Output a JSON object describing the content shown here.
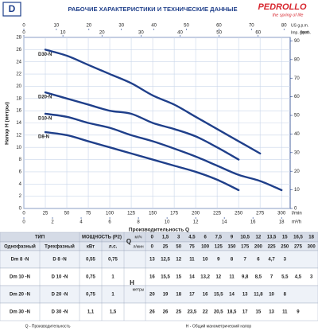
{
  "header": {
    "badge": "D",
    "title": "РАБОЧИЕ ХАРАКТЕРИСТИКИ И ТЕХНИЧЕСКИЕ ДАННЫЕ",
    "brand": "PEDROLLO",
    "tagline": "the spring of life"
  },
  "chart_data": {
    "type": "line",
    "y_label": "Напор H (метры)",
    "x_label": "Производительность Q",
    "x_unit": "l/min",
    "m3h_unit": "m³/h",
    "usgpm_unit": "US g.p.m.",
    "impgpm_unit": "Imp. g.p.m.",
    "y2_unit": "feet",
    "x": [
      25,
      50,
      75,
      100,
      125,
      150,
      175,
      200,
      225,
      250,
      275,
      300
    ],
    "xlim": [
      0,
      310
    ],
    "xticks": [
      0,
      25,
      50,
      75,
      100,
      125,
      150,
      175,
      200,
      225,
      250,
      275,
      300
    ],
    "m3h_lim": [
      0,
      18.6
    ],
    "m3h_ticks": [
      0,
      2,
      4,
      6,
      8,
      10,
      12,
      14,
      16,
      18
    ],
    "usgpm_lim": [
      0,
      81.9
    ],
    "usgpm_ticks": [
      0,
      10,
      20,
      30,
      40,
      50,
      60,
      70,
      80
    ],
    "impgpm_lim": [
      0,
      68.2
    ],
    "impgpm_ticks": [
      0,
      10,
      20,
      30,
      40,
      50,
      60
    ],
    "ylim": [
      0,
      28
    ],
    "yticks": [
      0,
      2,
      4,
      6,
      8,
      10,
      12,
      14,
      16,
      18,
      20,
      22,
      24,
      26,
      28
    ],
    "y2lim": [
      0,
      91.9
    ],
    "y2ticks": [
      0,
      10,
      20,
      30,
      40,
      50,
      60,
      70,
      80,
      90
    ],
    "grid": true,
    "series": [
      {
        "name": "D30-N",
        "color": "#1f3f8a",
        "values": [
          26,
          25,
          23.5,
          22,
          20.5,
          18.5,
          17,
          15,
          13,
          11,
          9,
          null
        ]
      },
      {
        "name": "D20-N",
        "color": "#1f3f8a",
        "values": [
          19,
          18,
          17,
          16,
          15.5,
          14,
          13,
          11.8,
          10,
          8,
          null,
          null
        ]
      },
      {
        "name": "D10-N",
        "color": "#1f3f8a",
        "values": [
          15.5,
          15,
          14,
          13.2,
          12,
          11,
          9.8,
          8.5,
          7,
          5.5,
          4.5,
          3
        ]
      },
      {
        "name": "D8-N",
        "color": "#1f3f8a",
        "values": [
          12.5,
          12,
          11,
          10,
          9,
          8,
          7,
          6,
          4.7,
          3,
          null,
          null
        ]
      }
    ]
  },
  "table": {
    "head": {
      "type": "ТИП",
      "power": "МОЩНОСТЬ (P2)",
      "q": "Q",
      "single": "Однофазный",
      "three": "Трехфазный",
      "kw": "кВт",
      "hp": "л.с.",
      "m3h": "м³/ч",
      "lmin": "л/мин",
      "h": "H",
      "meters": "метры",
      "flow_m3h": [
        "0",
        "1,5",
        "3",
        "4,5",
        "6",
        "7,5",
        "9",
        "10,5",
        "12",
        "13,5",
        "15",
        "16,5",
        "18"
      ],
      "flow_lmin": [
        "0",
        "25",
        "50",
        "75",
        "100",
        "125",
        "150",
        "175",
        "200",
        "225",
        "250",
        "275",
        "300"
      ]
    },
    "rows": [
      {
        "single": "Dm 8 -N",
        "three": "D 8 -N",
        "kw": "0,55",
        "hp": "0,75",
        "heads": [
          "13",
          "12,5",
          "12",
          "11",
          "10",
          "9",
          "8",
          "7",
          "6",
          "4,7",
          "3"
        ]
      },
      {
        "single": "Dm 10 -N",
        "three": "D 10 -N",
        "kw": "0,75",
        "hp": "1",
        "heads": [
          "16",
          "15,5",
          "15",
          "14",
          "13,2",
          "12",
          "11",
          "9,8",
          "8,5",
          "7",
          "5,5",
          "4,5",
          "3"
        ]
      },
      {
        "single": "Dm 20 -N",
        "three": "D 20 -N",
        "kw": "0,75",
        "hp": "1",
        "heads": [
          "20",
          "19",
          "18",
          "17",
          "16",
          "15,5",
          "14",
          "13",
          "11,8",
          "10",
          "8"
        ]
      },
      {
        "single": "Dm 30 -N",
        "three": "D 30 -N",
        "kw": "1,1",
        "hp": "1,5",
        "heads": [
          "26",
          "26",
          "25",
          "23,5",
          "22",
          "20,5",
          "18,5",
          "17",
          "15",
          "13",
          "11",
          "9"
        ]
      }
    ]
  },
  "footer": {
    "q_note": "Q - Производительность",
    "h_note": "H - Общий манометрический напор"
  }
}
